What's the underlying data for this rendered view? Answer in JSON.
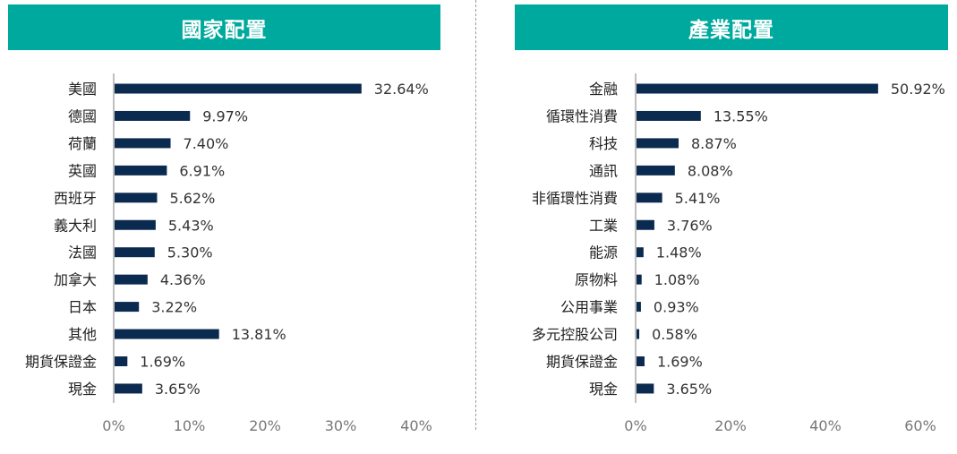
{
  "colors": {
    "header_bg": "#00a99d",
    "header_text": "#ffffff",
    "bar": "#0b2a4f",
    "axis": "#7f7f7f"
  },
  "chart_data": [
    {
      "type": "bar",
      "orientation": "horizontal",
      "title": "國家配置",
      "categories": [
        "美國",
        "德國",
        "荷蘭",
        "英國",
        "西班牙",
        "義大利",
        "法國",
        "加拿大",
        "日本",
        "其他",
        "期貨保證金",
        "現金"
      ],
      "values": [
        32.64,
        9.97,
        7.4,
        6.91,
        5.62,
        5.43,
        5.3,
        4.36,
        3.22,
        13.81,
        1.69,
        3.65
      ],
      "value_labels": [
        "32.64%",
        "9.97%",
        "7.40%",
        "6.91%",
        "5.62%",
        "5.43%",
        "5.30%",
        "4.36%",
        "3.22%",
        "13.81%",
        "1.69%",
        "3.65%"
      ],
      "xlim": [
        0,
        40
      ],
      "ticks": [
        0,
        10,
        20,
        30,
        40
      ],
      "tick_labels": [
        "0%",
        "10%",
        "20%",
        "30%",
        "40%"
      ],
      "grid": false,
      "legend": "none"
    },
    {
      "type": "bar",
      "orientation": "horizontal",
      "title": "產業配置",
      "categories": [
        "金融",
        "循環性消費",
        "科技",
        "通訊",
        "非循環性消費",
        "工業",
        "能源",
        "原物料",
        "公用事業",
        "多元控股公司",
        "期貨保證金",
        "現金"
      ],
      "values": [
        50.92,
        13.55,
        8.87,
        8.08,
        5.41,
        3.76,
        1.48,
        1.08,
        0.93,
        0.58,
        1.69,
        3.65
      ],
      "value_labels": [
        "50.92%",
        "13.55%",
        "8.87%",
        "8.08%",
        "5.41%",
        "3.76%",
        "1.48%",
        "1.08%",
        "0.93%",
        "0.58%",
        "1.69%",
        "3.65%"
      ],
      "xlim": [
        0,
        60
      ],
      "ticks": [
        0,
        20,
        40,
        60
      ],
      "tick_labels": [
        "0%",
        "20%",
        "40%",
        "60%"
      ],
      "grid": false,
      "legend": "none"
    }
  ]
}
